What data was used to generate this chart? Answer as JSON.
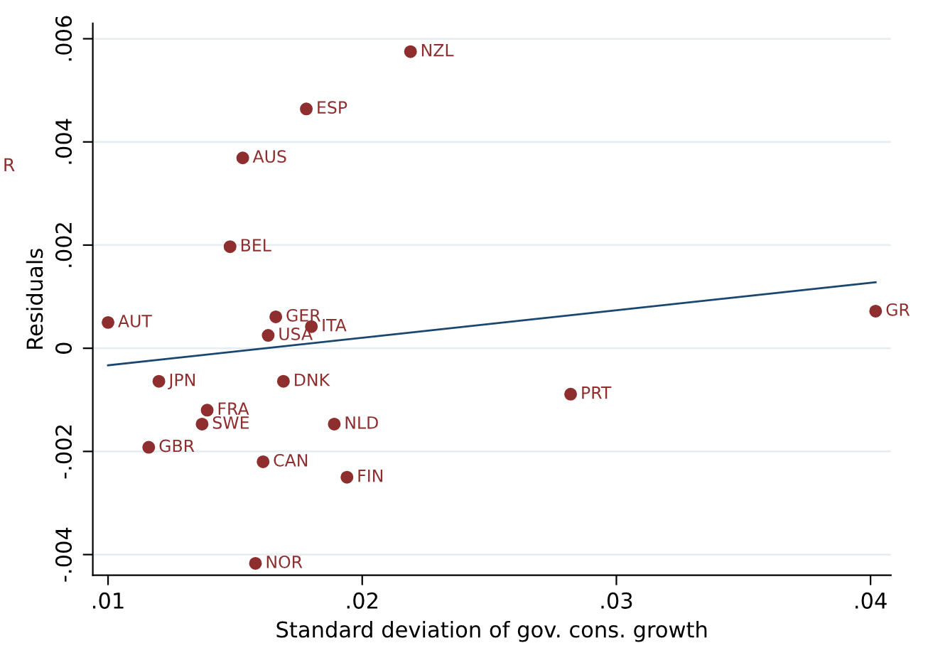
{
  "chart_data": {
    "type": "scatter",
    "xlabel": "Standard deviation of gov. cons. growth",
    "ylabel": "Residuals",
    "xlim": [
      0.0094,
      0.0408
    ],
    "ylim": [
      -0.0044,
      0.0063
    ],
    "xticks": [
      {
        "value": 0.01,
        "label": ".01"
      },
      {
        "value": 0.02,
        "label": ".02"
      },
      {
        "value": 0.03,
        "label": ".03"
      },
      {
        "value": 0.04,
        "label": ".04"
      }
    ],
    "yticks": [
      {
        "value": -0.004,
        "label": "-.004"
      },
      {
        "value": -0.002,
        "label": "-.002"
      },
      {
        "value": 0,
        "label": "0"
      },
      {
        "value": 0.002,
        "label": ".002"
      },
      {
        "value": 0.004,
        "label": ".004"
      },
      {
        "value": 0.006,
        "label": ".006"
      }
    ],
    "grid": "y",
    "series": [
      {
        "marker": "circle",
        "color": "#8f2e2e",
        "x": [
          0.0219,
          0.0178,
          0.0153,
          0.0148,
          0.01,
          0.0166,
          0.018,
          0.0163,
          0.012,
          0.0169,
          0.0139,
          0.0137,
          0.0189,
          0.0116,
          0.0161,
          0.0194,
          0.0158,
          0.0282,
          0.0402
        ],
        "values": [
          0.00575,
          0.00464,
          0.00369,
          0.00197,
          0.0005,
          0.00061,
          0.00042,
          0.00025,
          -0.00064,
          -0.00064,
          -0.0012,
          -0.00147,
          -0.00147,
          -0.00192,
          -0.0022,
          -0.0025,
          -0.00417,
          -0.00089,
          0.00072
        ]
      },
      {
        "type": "line",
        "color": "#1a476f",
        "x": [
          0.01,
          0.0402
        ],
        "values": [
          -0.00033,
          0.00128
        ]
      }
    ],
    "annotations": [
      {
        "text": "NZL",
        "x": 0.0219,
        "y": 0.00575
      },
      {
        "text": "ESP",
        "x": 0.0178,
        "y": 0.00464
      },
      {
        "text": "AUS",
        "x": 0.0153,
        "y": 0.00369
      },
      {
        "text": "BEL",
        "x": 0.0148,
        "y": 0.00197
      },
      {
        "text": "AUT",
        "x": 0.01,
        "y": 0.0005
      },
      {
        "text": "GER",
        "x": 0.0166,
        "y": 0.00061
      },
      {
        "text": "ITA",
        "x": 0.018,
        "y": 0.00042
      },
      {
        "text": "USA",
        "x": 0.0163,
        "y": 0.00025
      },
      {
        "text": "JPN",
        "x": 0.012,
        "y": -0.00064
      },
      {
        "text": "DNK",
        "x": 0.0169,
        "y": -0.00064
      },
      {
        "text": "FRA",
        "x": 0.0139,
        "y": -0.0012
      },
      {
        "text": "SWE",
        "x": 0.0137,
        "y": -0.00147
      },
      {
        "text": "NLD",
        "x": 0.0189,
        "y": -0.00147
      },
      {
        "text": "GBR",
        "x": 0.0116,
        "y": -0.00192
      },
      {
        "text": "CAN",
        "x": 0.0161,
        "y": -0.0022
      },
      {
        "text": "FIN",
        "x": 0.0194,
        "y": -0.0025
      },
      {
        "text": "NOR",
        "x": 0.0158,
        "y": -0.00417
      },
      {
        "text": "PRT",
        "x": 0.0282,
        "y": -0.00089
      },
      {
        "text": "GR",
        "x": 0.0402,
        "y": 0.00072
      },
      "R"
    ]
  }
}
